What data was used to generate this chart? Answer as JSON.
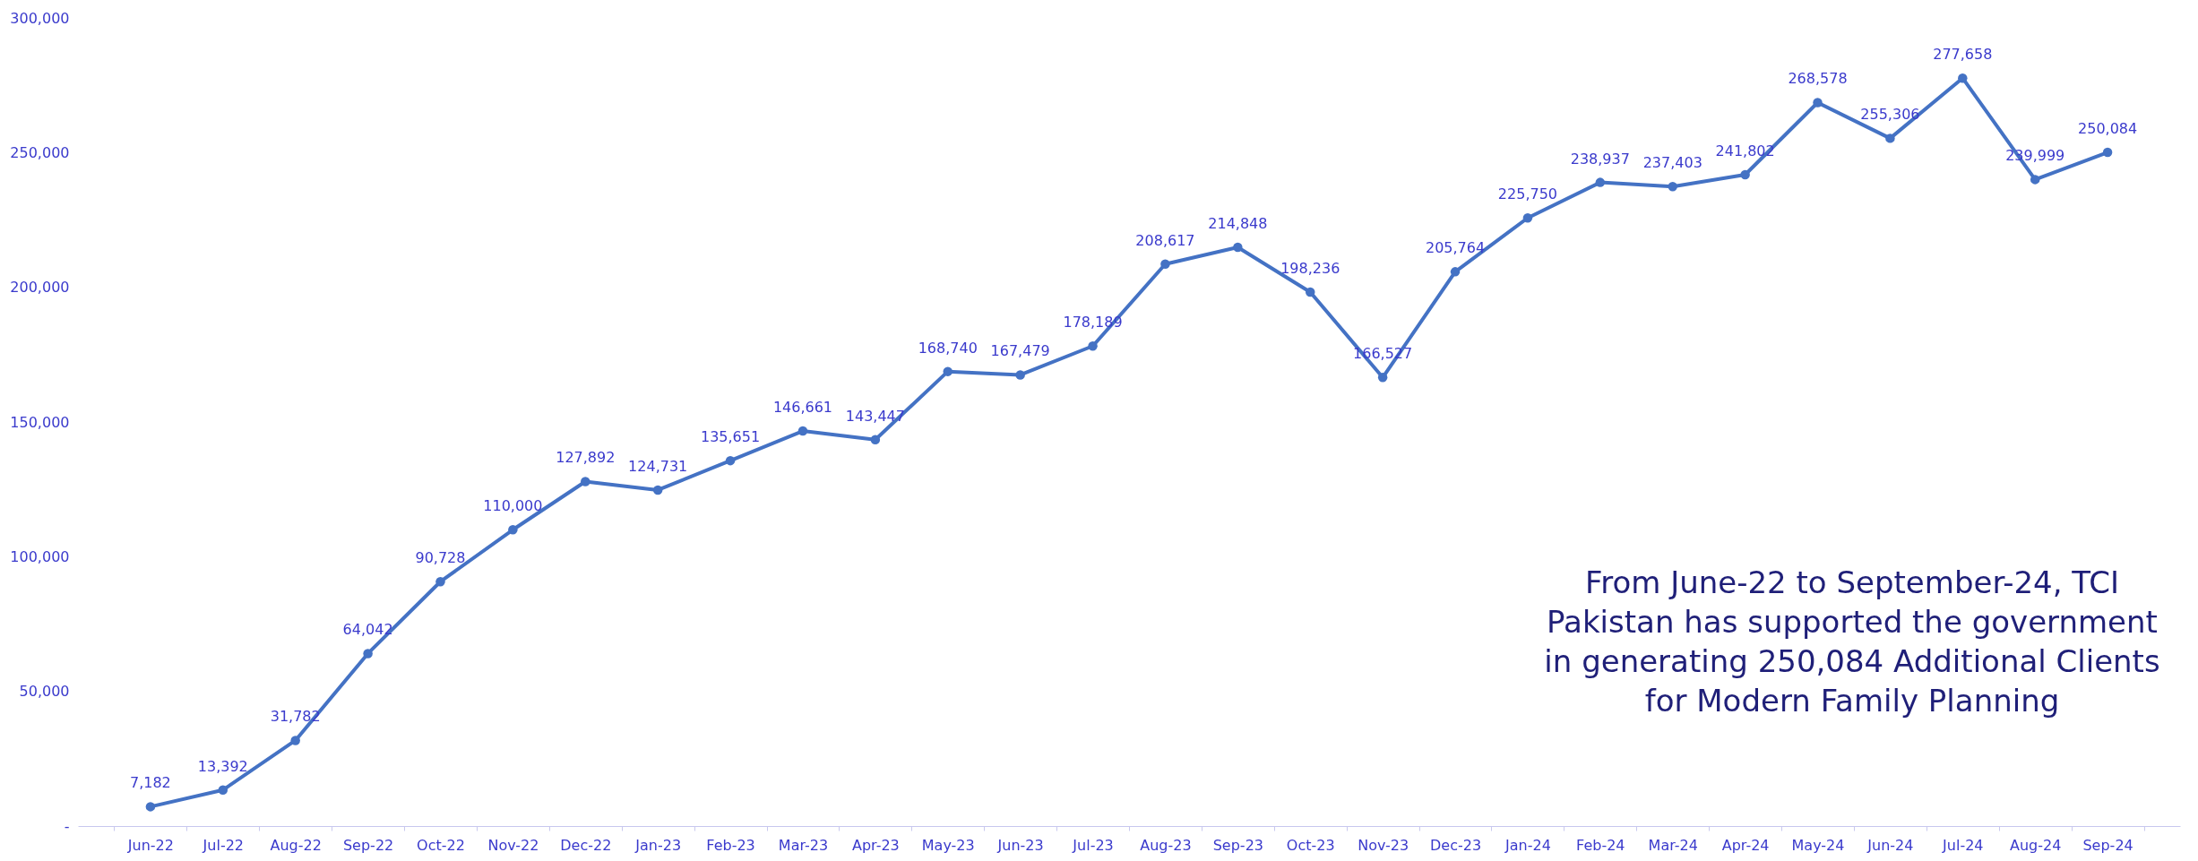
{
  "chart_data": {
    "type": "line",
    "categories": [
      "Jun-22",
      "Jul-22",
      "Aug-22",
      "Sep-22",
      "Oct-22",
      "Nov-22",
      "Dec-22",
      "Jan-23",
      "Feb-23",
      "Mar-23",
      "Apr-23",
      "May-23",
      "Jun-23",
      "Jul-23",
      "Aug-23",
      "Sep-23",
      "Oct-23",
      "Nov-23",
      "Dec-23",
      "Jan-24",
      "Feb-24",
      "Mar-24",
      "Apr-24",
      "May-24",
      "Jun-24",
      "Jul-24",
      "Aug-24",
      "Sep-24"
    ],
    "series": [
      {
        "color": "#4472c4",
        "values": [
          7182,
          13392,
          31782,
          64042,
          90728,
          110000,
          127892,
          124731,
          135651,
          146661,
          143447,
          168740,
          167479,
          178189,
          208617,
          214848,
          198236,
          166527,
          205764,
          225750,
          238937,
          237403,
          241802,
          268578,
          255306,
          277658,
          239999,
          250084
        ]
      }
    ],
    "ylim": [
      0,
      300000
    ],
    "yticks": [
      {
        "value": 0,
        "label": "-"
      },
      {
        "value": 50000,
        "label": "50,000"
      },
      {
        "value": 100000,
        "label": "100,000"
      },
      {
        "value": 150000,
        "label": "150,000"
      },
      {
        "value": 200000,
        "label": "200,000"
      },
      {
        "value": 250000,
        "label": "250,000"
      },
      {
        "value": 300000,
        "label": "300,000"
      }
    ],
    "value_labels": [
      "7,182",
      "13,392",
      "31,782",
      "64,042",
      "90,728",
      "110,000",
      "127,892",
      "124,731",
      "135,651",
      "146,661",
      "143,447",
      "168,740",
      "167,479",
      "178,189",
      "208,617",
      "214,848",
      "198,236",
      "166,527",
      "205,764",
      "225,750",
      "238,937",
      "237,403",
      "241,802",
      "268,578",
      "255,306",
      "277,658",
      "239,999",
      "250,084"
    ],
    "marker": "circle",
    "line_style": "solid",
    "grid": false,
    "annotations": [
      "From June-22 to September-24, TCI\nPakistan has supported the government\nin generating 250,084 Additional Clients\nfor Modern Family Planning"
    ]
  }
}
